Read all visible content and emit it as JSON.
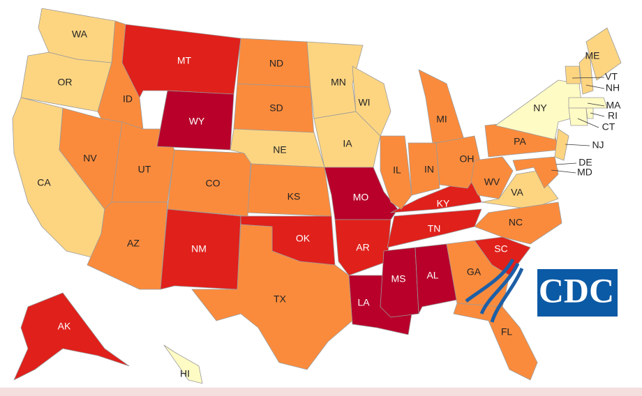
{
  "map": {
    "states": [
      {
        "label": "WA",
        "color": "#fdd581"
      },
      {
        "label": "OR",
        "color": "#fdd581"
      },
      {
        "label": "CA",
        "color": "#fdd581"
      },
      {
        "label": "ID",
        "color": "#fb8b3c"
      },
      {
        "label": "NV",
        "color": "#fb8b3c"
      },
      {
        "label": "UT",
        "color": "#fb8b3c"
      },
      {
        "label": "AZ",
        "color": "#fb8b3c"
      },
      {
        "label": "MT",
        "color": "#e0201b"
      },
      {
        "label": "WY",
        "color": "#b8002a"
      },
      {
        "label": "CO",
        "color": "#fb8b3c"
      },
      {
        "label": "NM",
        "color": "#e0201b"
      },
      {
        "label": "ND",
        "color": "#fb8b3c"
      },
      {
        "label": "SD",
        "color": "#fb8b3c"
      },
      {
        "label": "NE",
        "color": "#fdd581"
      },
      {
        "label": "KS",
        "color": "#fb8b3c"
      },
      {
        "label": "OK",
        "color": "#e0201b"
      },
      {
        "label": "TX",
        "color": "#fb8b3c"
      },
      {
        "label": "MN",
        "color": "#fdd581"
      },
      {
        "label": "IA",
        "color": "#fdd581"
      },
      {
        "label": "WI",
        "color": "#fdd581"
      },
      {
        "label": "MO",
        "color": "#b8002a"
      },
      {
        "label": "AR",
        "color": "#e0201b"
      },
      {
        "label": "LA",
        "color": "#b8002a"
      },
      {
        "label": "MS",
        "color": "#b8002a"
      },
      {
        "label": "AL",
        "color": "#b8002a"
      },
      {
        "label": "TN",
        "color": "#e0201b"
      },
      {
        "label": "KY",
        "color": "#e0201b"
      },
      {
        "label": "IL",
        "color": "#fb8b3c"
      },
      {
        "label": "IN",
        "color": "#fb8b3c"
      },
      {
        "label": "MI",
        "color": "#fb8b3c"
      },
      {
        "label": "OH",
        "color": "#fb8b3c"
      },
      {
        "label": "PA",
        "color": "#fb8b3c"
      },
      {
        "label": "WV",
        "color": "#fb8b3c"
      },
      {
        "label": "VA",
        "color": "#fdd581"
      },
      {
        "label": "NC",
        "color": "#fb8b3c"
      },
      {
        "label": "SC",
        "color": "#e0201b"
      },
      {
        "label": "GA",
        "color": "#fb8b3c"
      },
      {
        "label": "FL",
        "color": "#fb8b3c"
      },
      {
        "label": "NY",
        "color": "#fffbc4"
      },
      {
        "label": "VT",
        "color": "#fdd581"
      },
      {
        "label": "NH",
        "color": "#fdd581"
      },
      {
        "label": "ME",
        "color": "#fdd581"
      },
      {
        "label": "MA",
        "color": "#fffbc4"
      },
      {
        "label": "CT",
        "color": "#fffbc4"
      },
      {
        "label": "RI",
        "color": "#fffbc4"
      },
      {
        "label": "NJ",
        "color": "#fdd581"
      },
      {
        "label": "DE",
        "color": "#fb8b3c"
      },
      {
        "label": "MD",
        "color": "#fb8b3c"
      },
      {
        "label": "AK",
        "color": "#e0201b"
      },
      {
        "label": "HI",
        "color": "#fffbc4"
      }
    ],
    "logo": "CDC"
  }
}
